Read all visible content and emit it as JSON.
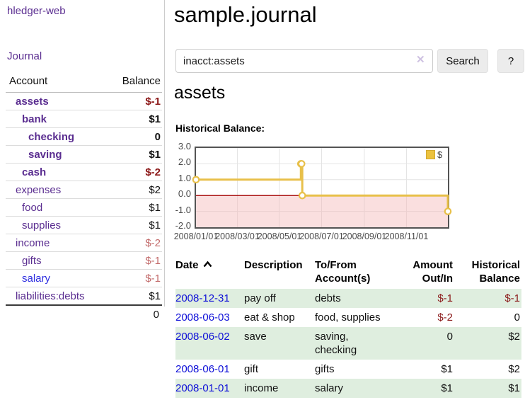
{
  "app": {
    "brand": "hledger-web"
  },
  "colors": {
    "link_purple": "#5a2d90",
    "link_blue": "#2d2de0",
    "date_link_blue": "#0f10d8",
    "negative_strong": "#8b1717",
    "negative_muted": "#c26a6a",
    "row_shade_green": "#dfeedf",
    "accent_gold": "#e8c04a"
  },
  "sidebar": {
    "nav": [
      {
        "label": "Journal"
      }
    ],
    "accounts_table": {
      "account_header": "Account",
      "balance_header": "Balance",
      "rows": [
        {
          "name": "assets",
          "indent": 1,
          "bold": true,
          "balance": "$-1",
          "balance_tone": "negative-strong",
          "name_color": "purple"
        },
        {
          "name": "bank",
          "indent": 2,
          "bold": true,
          "balance": "$1",
          "balance_tone": "normal",
          "name_color": "purple"
        },
        {
          "name": "checking",
          "indent": 3,
          "bold": true,
          "balance": "0",
          "balance_tone": "normal",
          "name_color": "purple"
        },
        {
          "name": "saving",
          "indent": 3,
          "bold": true,
          "balance": "$1",
          "balance_tone": "normal",
          "name_color": "purple"
        },
        {
          "name": "cash",
          "indent": 2,
          "bold": true,
          "balance": "$-2",
          "balance_tone": "negative-strong",
          "name_color": "purple"
        },
        {
          "name": "expenses",
          "indent": 1,
          "bold": false,
          "balance": "$2",
          "balance_tone": "normal",
          "name_color": "purple"
        },
        {
          "name": "food",
          "indent": 2,
          "bold": false,
          "balance": "$1",
          "balance_tone": "normal",
          "name_color": "purple"
        },
        {
          "name": "supplies",
          "indent": 2,
          "bold": false,
          "balance": "$1",
          "balance_tone": "normal",
          "name_color": "purple"
        },
        {
          "name": "income",
          "indent": 1,
          "bold": false,
          "balance": "$-2",
          "balance_tone": "negative-muted",
          "name_color": "purple"
        },
        {
          "name": "gifts",
          "indent": 2,
          "bold": false,
          "balance": "$-1",
          "balance_tone": "negative-muted",
          "name_color": "purple"
        },
        {
          "name": "salary",
          "indent": 2,
          "bold": false,
          "balance": "$-1",
          "balance_tone": "negative-muted",
          "name_color": "blue"
        },
        {
          "name": "liabilities:debts",
          "indent": 1,
          "bold": false,
          "balance": "$1",
          "balance_tone": "normal",
          "name_color": "purple"
        }
      ],
      "total": "0"
    }
  },
  "main": {
    "page_title": "sample.journal",
    "search": {
      "value": "inacct:assets",
      "clear_label": "✕",
      "search_button": "Search",
      "help_button": "?"
    },
    "account_heading": "assets",
    "section_label": "Historical Balance:"
  },
  "chart_data": {
    "type": "line",
    "step": true,
    "title": "Historical Balance:",
    "legend": {
      "position": "top-right",
      "label": "$"
    },
    "x_range": [
      "2008-01-01",
      "2008-12-31"
    ],
    "ylim": [
      -2,
      3
    ],
    "x_ticks": [
      {
        "label": "2008/01/01",
        "date": "2008-01-01"
      },
      {
        "label": "2008/03/01",
        "date": "2008-03-01"
      },
      {
        "label": "2008/05/01",
        "date": "2008-05-01"
      },
      {
        "label": "2008/07/01",
        "date": "2008-07-01"
      },
      {
        "label": "2008/09/01",
        "date": "2008-09-01"
      },
      {
        "label": "2008/11/01",
        "date": "2008-11-01"
      }
    ],
    "y_ticks": [
      {
        "label": "3.0",
        "value": 3
      },
      {
        "label": "2.0",
        "value": 2
      },
      {
        "label": "1.0",
        "value": 1
      },
      {
        "label": "0.0",
        "value": 0
      },
      {
        "label": "-1.0",
        "value": -1
      },
      {
        "label": "-2.0",
        "value": -2
      }
    ],
    "series": [
      {
        "name": "$",
        "points": [
          {
            "date": "2008-01-01",
            "value": 1
          },
          {
            "date": "2008-06-01",
            "value": 2
          },
          {
            "date": "2008-06-02",
            "value": 2
          },
          {
            "date": "2008-06-03",
            "value": 0
          },
          {
            "date": "2008-12-31",
            "value": -1
          }
        ]
      }
    ],
    "colors": {
      "line": "#e8c04a",
      "marker_fill": "#ffffff",
      "negative_region": "#f5b8b8",
      "zero_line": "#a40000",
      "grid": "#e4e4e4",
      "border": "#545454",
      "legend_swatch": "#ecc23f"
    }
  },
  "register": {
    "headers": [
      {
        "label": "Date"
      },
      {
        "label": "Description"
      },
      {
        "label": "To/From Account(s)"
      },
      {
        "label": "Amount Out/In"
      },
      {
        "label": "Historical Balance"
      }
    ],
    "rows": [
      {
        "date": "2008-12-31",
        "description": "pay off",
        "accounts": "debts",
        "amount": "$-1",
        "amount_negative": true,
        "balance": "$-1",
        "balance_negative": true,
        "shaded": true
      },
      {
        "date": "2008-06-03",
        "description": "eat & shop",
        "accounts": "food, supplies",
        "amount": "$-2",
        "amount_negative": true,
        "balance": "0",
        "balance_negative": false,
        "shaded": false
      },
      {
        "date": "2008-06-02",
        "description": "save",
        "accounts": "saving, checking",
        "amount": "0",
        "amount_negative": false,
        "balance": "$2",
        "balance_negative": false,
        "shaded": true
      },
      {
        "date": "2008-06-01",
        "description": "gift",
        "accounts": "gifts",
        "amount": "$1",
        "amount_negative": false,
        "balance": "$2",
        "balance_negative": false,
        "shaded": false
      },
      {
        "date": "2008-01-01",
        "description": "income",
        "accounts": "salary",
        "amount": "$1",
        "amount_negative": false,
        "balance": "$1",
        "balance_negative": false,
        "shaded": true
      }
    ]
  }
}
